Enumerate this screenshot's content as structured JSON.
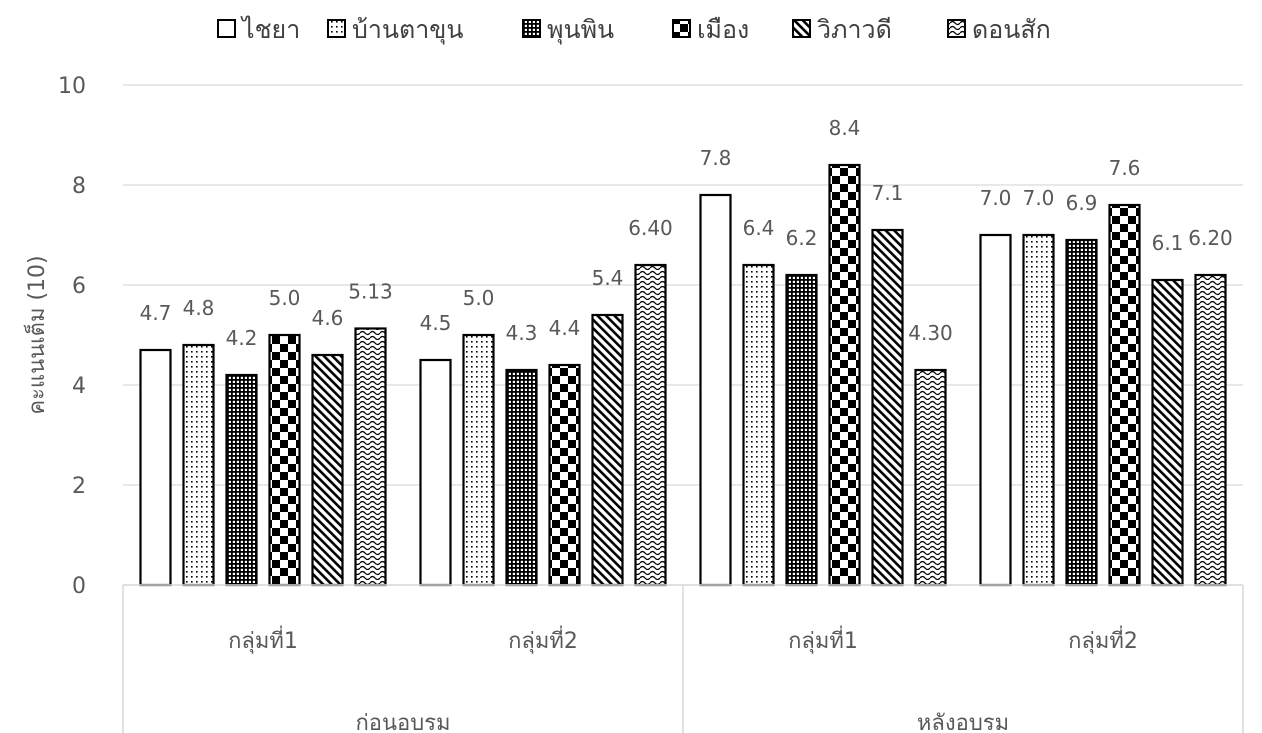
{
  "chart_data": {
    "type": "bar",
    "title": "",
    "ylabel": "คะแนนเต็ม (10)",
    "xlabel": "",
    "ylim": [
      0,
      10
    ],
    "yticks": [
      0,
      2,
      4,
      6,
      8,
      10
    ],
    "grid": true,
    "legend_position": "top",
    "groups": [
      {
        "label": "ก่อนอบรม",
        "subgroups": [
          "กลุ่มที่1",
          "กลุ่มที่2"
        ]
      },
      {
        "label": "หลังอบรม",
        "subgroups": [
          "กลุ่มที่1",
          "กลุ่มที่2"
        ]
      }
    ],
    "categories": [
      "กลุ่มที่1",
      "กลุ่มที่2",
      "กลุ่มที่1",
      "กลุ่มที่2"
    ],
    "series": [
      {
        "name": "ไชยา",
        "pattern": "white",
        "values": [
          4.7,
          4.5,
          7.8,
          7.0
        ],
        "labels": [
          "4.7",
          "4.5",
          "7.8",
          "7.0"
        ]
      },
      {
        "name": "บ้านตาขุน",
        "pattern": "dots-sparse",
        "values": [
          4.8,
          5.0,
          6.4,
          7.0
        ],
        "labels": [
          "4.8",
          "5.0",
          "6.4",
          "7.0"
        ]
      },
      {
        "name": "พุนพิน",
        "pattern": "grid-dense",
        "values": [
          4.2,
          4.3,
          6.2,
          6.9
        ],
        "labels": [
          "4.2",
          "4.3",
          "6.2",
          "6.9"
        ]
      },
      {
        "name": "เมือง",
        "pattern": "checker",
        "values": [
          5.0,
          4.4,
          8.4,
          7.6
        ],
        "labels": [
          "5.0",
          "4.4",
          "8.4",
          "7.6"
        ]
      },
      {
        "name": "วิภาวดี",
        "pattern": "diagonal",
        "values": [
          4.6,
          5.4,
          7.1,
          6.1
        ],
        "labels": [
          "4.6",
          "5.4",
          "7.1",
          "6.1"
        ]
      },
      {
        "name": "ดอนสัก",
        "pattern": "wave",
        "values": [
          5.13,
          6.4,
          4.3,
          6.2
        ],
        "labels": [
          "5.13",
          "6.40",
          "4.30",
          "6.20"
        ]
      }
    ]
  }
}
